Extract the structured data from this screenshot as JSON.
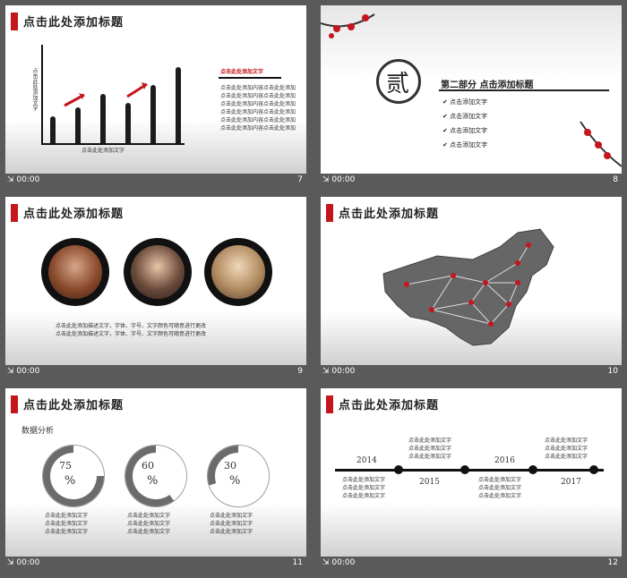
{
  "slides": [
    {
      "number": "7",
      "time": "00:00",
      "title": "点击此处添加标题",
      "y_label": "点击此处添加文字",
      "x_label": "点击此处添加文字",
      "side_heading": "点击此处添加文字",
      "side_lines": [
        "点击此处添加内容点击此处添加",
        "点击此处添加内容点击此处添加",
        "点击此处添加内容点击此处添加",
        "点击此处添加内容点击此处添加",
        "点击此处添加内容点击此处添加",
        "点击此处添加内容点击此处添加"
      ],
      "bar_levels": [
        0.3,
        0.4,
        0.55,
        0.45,
        0.65,
        0.85
      ]
    },
    {
      "number": "8",
      "time": "00:00",
      "chapter_char": "贰",
      "heading": "第二部分  点击添加标题",
      "items": [
        "点击添加文字",
        "点击添加文字",
        "点击添加文字",
        "点击添加文字"
      ]
    },
    {
      "number": "9",
      "time": "00:00",
      "title": "点击此处添加标题",
      "lines": [
        "点击此处添加描述文字，字体、字号、文字颜色可随意进行更改",
        "点击此处添加描述文字，字体、字号、文字颜色可随意进行更改"
      ]
    },
    {
      "number": "10",
      "time": "00:00",
      "title": "点击此处添加标题"
    },
    {
      "number": "11",
      "time": "00:00",
      "title": "点击此处添加标题",
      "subtitle": "数据分析",
      "donuts": [
        {
          "value": "75",
          "pct": "%",
          "fraction": 0.75
        },
        {
          "value": "60",
          "pct": "%",
          "fraction": 0.6
        },
        {
          "value": "30",
          "pct": "%",
          "fraction": 0.3
        }
      ],
      "donut_lines": [
        "点击此处添加文字",
        "点击此处添加文字",
        "点击此处添加文字"
      ]
    },
    {
      "number": "12",
      "time": "00:00",
      "title": "点击此处添加标题",
      "years": [
        "2014",
        "2015",
        "2016",
        "2017"
      ],
      "captions": [
        "点击此处添加文字",
        "点击此处添加文字",
        "点击此处添加文字"
      ]
    }
  ],
  "colors": {
    "accent": "#c4161c",
    "ink": "#1c1c1c",
    "bg": "#5a5a5a"
  }
}
